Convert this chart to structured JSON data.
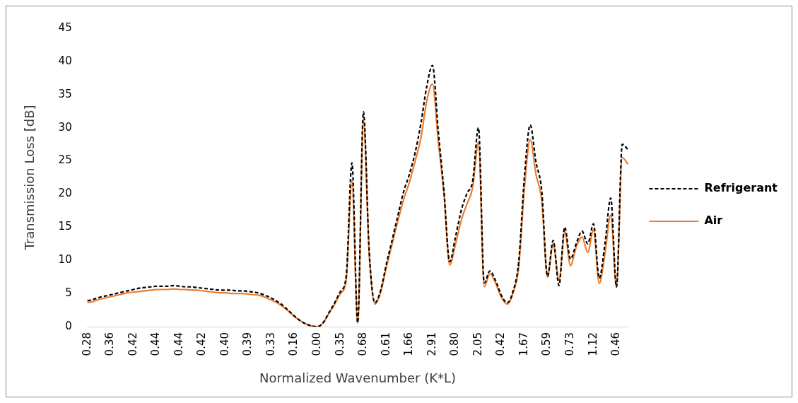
{
  "chart_data": {
    "type": "line",
    "xlabel": "Normalized Wavenumber (K*L)",
    "ylabel": "Transmission Loss [dB]",
    "categories": [
      "0.28",
      null,
      null,
      null,
      "0.36",
      null,
      null,
      null,
      "0.42",
      null,
      null,
      null,
      "0.44",
      null,
      null,
      null,
      "0.44",
      null,
      null,
      null,
      "0.42",
      null,
      null,
      null,
      "0.40",
      null,
      null,
      null,
      "0.39",
      null,
      null,
      null,
      "0.33",
      null,
      null,
      null,
      "0.16",
      null,
      null,
      null,
      "0.00",
      null,
      null,
      null,
      "0.35",
      null,
      null,
      null,
      "0.68",
      null,
      null,
      null,
      "0.61",
      null,
      null,
      null,
      "1.66",
      null,
      null,
      null,
      "2.91",
      null,
      null,
      null,
      "0.80",
      null,
      null,
      null,
      "2.05",
      null,
      null,
      null,
      "0.42",
      null,
      null,
      null,
      "1.67",
      null,
      null,
      null,
      "0.59",
      null,
      null,
      null,
      "0.73",
      null,
      null,
      null,
      "1.12",
      null,
      null,
      null,
      "0.46",
      null,
      null
    ],
    "series": [
      {
        "name": "Refrigerant",
        "color": "#000000",
        "line_style": "dashed",
        "values": [
          3.9,
          4.1,
          4.4,
          4.6,
          4.8,
          5.0,
          5.2,
          5.4,
          5.6,
          5.8,
          5.9,
          6.0,
          6.1,
          6.1,
          6.1,
          6.2,
          6.1,
          6.0,
          6.0,
          5.9,
          5.8,
          5.7,
          5.6,
          5.5,
          5.5,
          5.5,
          5.4,
          5.4,
          5.3,
          5.2,
          5.0,
          4.7,
          4.3,
          3.8,
          3.2,
          2.4,
          1.6,
          0.9,
          0.4,
          0.1,
          0.0,
          0.6,
          2.1,
          3.6,
          5.3,
          7.6,
          24.7,
          0.6,
          32.4,
          11.3,
          3.6,
          5.5,
          9.5,
          13.1,
          16.8,
          20.4,
          23.0,
          26.3,
          30.7,
          36.2,
          39.4,
          29.6,
          20.4,
          9.8,
          13.5,
          17.5,
          20.1,
          22.0,
          30.0,
          6.6,
          8.4,
          6.9,
          4.7,
          3.6,
          5.3,
          9.8,
          22.7,
          30.4,
          24.8,
          20.5,
          7.6,
          13.0,
          6.2,
          15.0,
          10.2,
          12.5,
          14.4,
          12.5,
          15.5,
          7.3,
          12.5,
          19.4,
          6.0,
          27.5,
          26.7
        ]
      },
      {
        "name": "Air",
        "color": "#ed7d31",
        "line_style": "solid",
        "values": [
          3.6,
          3.8,
          4.1,
          4.3,
          4.5,
          4.7,
          4.9,
          5.1,
          5.2,
          5.3,
          5.4,
          5.5,
          5.6,
          5.6,
          5.6,
          5.7,
          5.6,
          5.6,
          5.5,
          5.5,
          5.4,
          5.3,
          5.2,
          5.1,
          5.1,
          5.0,
          5.0,
          5.0,
          4.9,
          4.8,
          4.7,
          4.4,
          4.0,
          3.6,
          3.0,
          2.3,
          1.5,
          0.9,
          0.4,
          0.1,
          0.0,
          0.6,
          2.0,
          3.4,
          5.0,
          7.0,
          22.0,
          0.5,
          31.0,
          11.0,
          3.4,
          5.2,
          9.0,
          12.5,
          16.0,
          19.2,
          21.8,
          25.0,
          28.5,
          34.0,
          36.6,
          28.0,
          20.0,
          9.3,
          12.4,
          16.0,
          18.5,
          21.0,
          27.8,
          6.0,
          8.0,
          6.5,
          4.4,
          3.4,
          5.0,
          9.0,
          21.0,
          28.2,
          23.0,
          19.0,
          7.5,
          12.5,
          7.0,
          14.3,
          9.2,
          12.0,
          13.5,
          11.2,
          14.6,
          6.5,
          11.0,
          16.8,
          6.0,
          25.5,
          24.5
        ]
      }
    ],
    "ylim": [
      0,
      45
    ],
    "yticks": [
      0,
      5,
      10,
      15,
      20,
      25,
      30,
      35,
      40,
      45
    ],
    "grid": false,
    "legend": "right",
    "marker": "none"
  }
}
